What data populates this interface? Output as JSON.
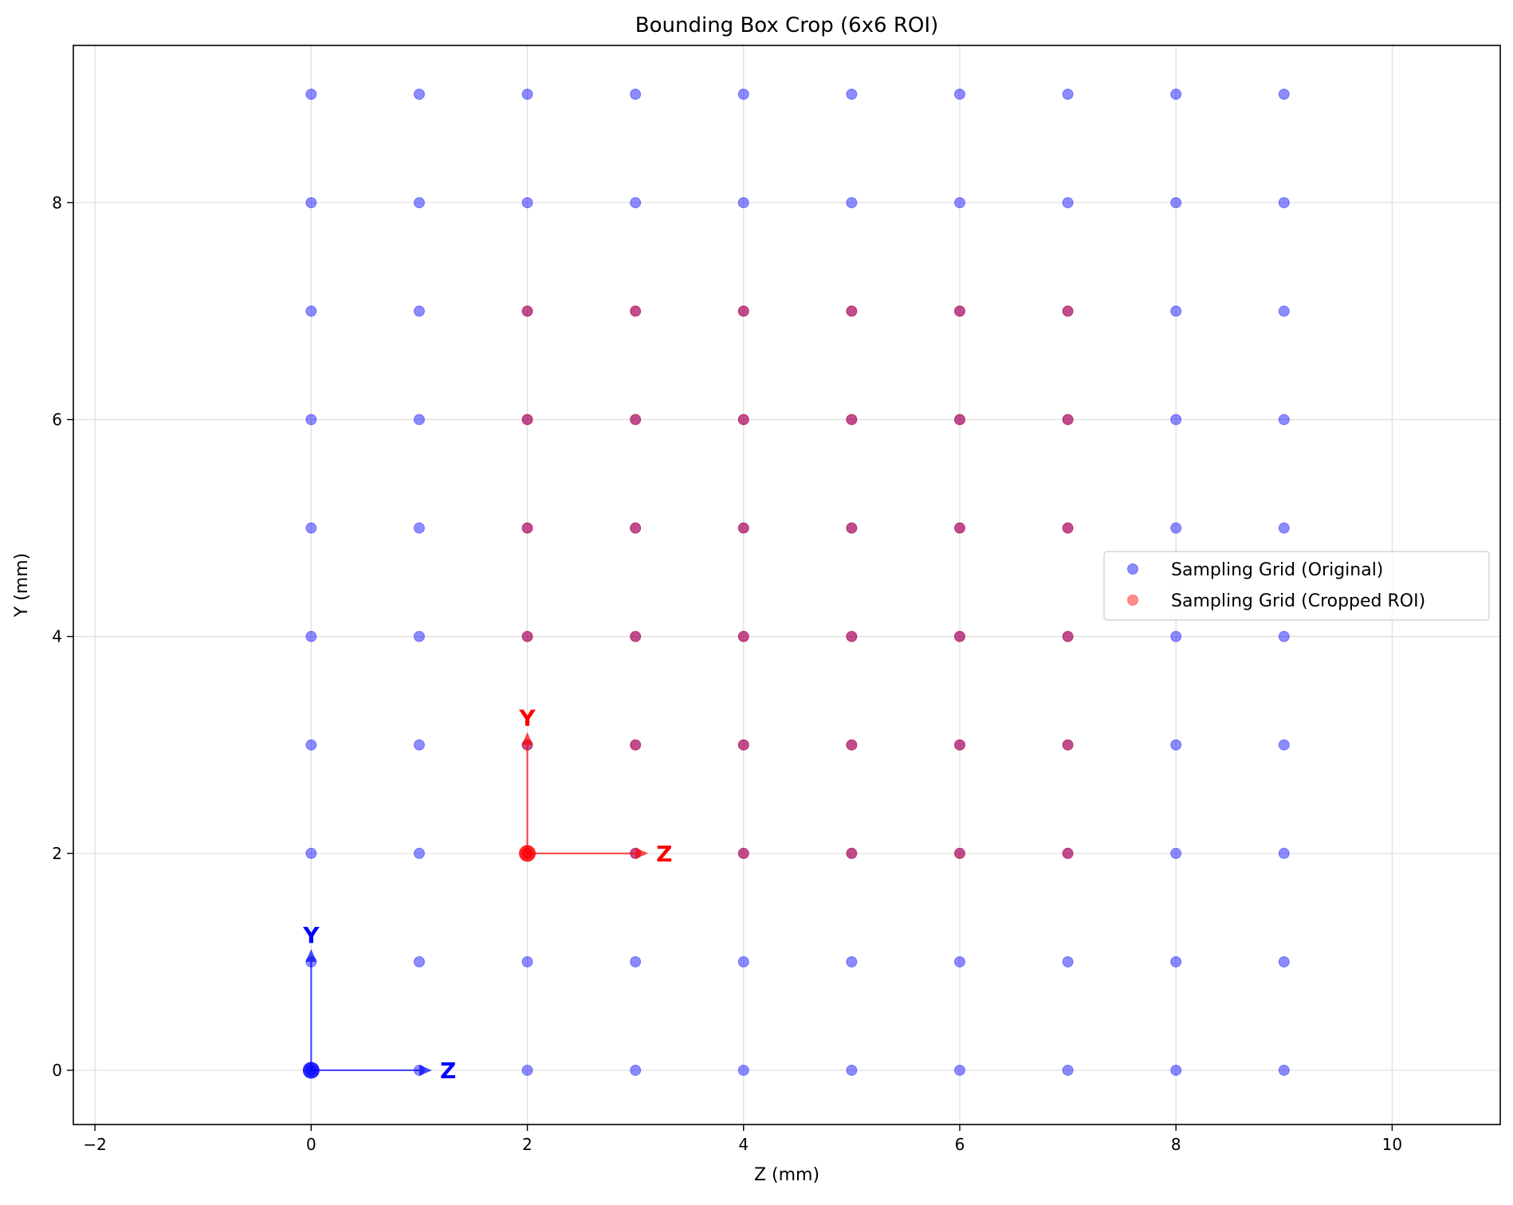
{
  "chart_data": {
    "type": "scatter",
    "title": "Bounding Box Crop (6x6 ROI)",
    "xlabel": "Z (mm)",
    "ylabel": "Y (mm)",
    "xlim": [
      -2.2,
      11.0
    ],
    "ylim": [
      -0.5,
      9.45
    ],
    "xticks": [
      -2,
      0,
      2,
      4,
      6,
      8,
      10
    ],
    "yticks": [
      0,
      2,
      4,
      6,
      8
    ],
    "grid": true,
    "legend_position": "center-right",
    "series": [
      {
        "name": "Sampling Grid (Original)",
        "color": "#0000ff",
        "opacity": 0.45,
        "x_values": [
          0,
          1,
          2,
          3,
          4,
          5,
          6,
          7,
          8,
          9
        ],
        "y_values": [
          0,
          1,
          2,
          3,
          4,
          5,
          6,
          7,
          8,
          9
        ]
      },
      {
        "name": "Sampling Grid (Cropped ROI)",
        "color": "#ff0000",
        "opacity": 0.45,
        "x_values": [
          2,
          3,
          4,
          5,
          6,
          7
        ],
        "y_values": [
          2,
          3,
          4,
          5,
          6,
          7
        ]
      }
    ],
    "frames": [
      {
        "origin": [
          0,
          0
        ],
        "color": "#0000ff",
        "z_label": "Z",
        "y_label": "Y"
      },
      {
        "origin": [
          2,
          2
        ],
        "color": "#ff0000",
        "z_label": "Z",
        "y_label": "Y"
      }
    ]
  }
}
